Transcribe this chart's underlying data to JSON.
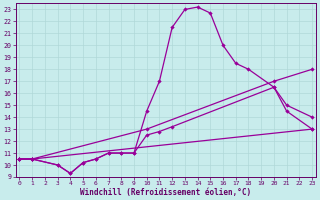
{
  "xlabel": "Windchill (Refroidissement éolien,°C)",
  "bg_color": "#c8ecec",
  "line_color": "#990099",
  "grid_color": "#b0d8d8",
  "xlim": [
    -0.5,
    23.5
  ],
  "ylim": [
    9,
    23.5
  ],
  "xticks": [
    0,
    1,
    2,
    3,
    4,
    5,
    6,
    7,
    8,
    9,
    10,
    11,
    12,
    13,
    14,
    15,
    16,
    17,
    18,
    19,
    20,
    21,
    22,
    23
  ],
  "yticks": [
    9,
    10,
    11,
    12,
    13,
    14,
    15,
    16,
    17,
    18,
    19,
    20,
    21,
    22,
    23
  ],
  "line1_x": [
    0,
    1,
    3,
    4,
    5,
    6,
    7,
    8,
    9,
    10,
    11,
    12,
    13,
    14,
    15,
    16,
    17,
    18,
    20,
    21,
    23
  ],
  "line1_y": [
    10.5,
    10.5,
    10.0,
    9.3,
    10.2,
    10.5,
    11.0,
    11.0,
    11.0,
    14.5,
    17.0,
    21.5,
    23.0,
    23.2,
    22.7,
    20.0,
    18.5,
    18.0,
    16.5,
    14.5,
    13.0
  ],
  "line2_x": [
    0,
    1,
    3,
    4,
    5,
    6,
    7,
    8,
    9,
    10,
    11,
    12,
    20,
    21,
    23
  ],
  "line2_y": [
    10.5,
    10.5,
    10.0,
    9.3,
    10.2,
    10.5,
    11.0,
    11.0,
    11.0,
    12.5,
    12.8,
    13.2,
    16.5,
    15.0,
    14.0
  ],
  "line3_x": [
    0,
    1,
    10,
    20,
    23
  ],
  "line3_y": [
    10.5,
    10.5,
    13.0,
    17.0,
    18.0
  ],
  "line4_x": [
    0,
    1,
    23
  ],
  "line4_y": [
    10.5,
    10.5,
    13.0
  ]
}
